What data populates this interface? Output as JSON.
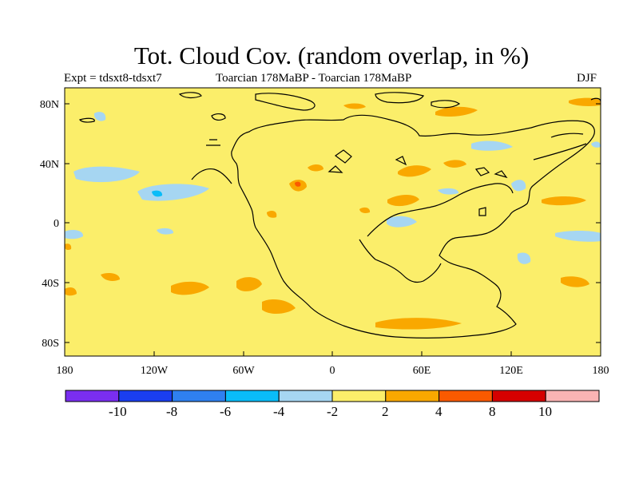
{
  "title": "Tot. Cloud Cov. (random overlap, in %)",
  "subtitle_left": "Expt = tdsxt8-tdsxt7",
  "subtitle_center": "Toarcian 178MaBP - Toarcian 178MaBP",
  "subtitle_right": "DJF",
  "x_ticks": [
    "180",
    "120W",
    "60W",
    "0",
    "60E",
    "120E",
    "180"
  ],
  "y_ticks": [
    "80N",
    "40N",
    "0",
    "40S",
    "80S"
  ],
  "colorbar": {
    "colors": [
      "#7a2ef0",
      "#1a3ef0",
      "#2f80f0",
      "#0abcf8",
      "#a6d6f2",
      "#fbee6a",
      "#f9a800",
      "#fa5a00",
      "#d50000",
      "#fab4b4"
    ],
    "labels": [
      "-10",
      "-8",
      "-6",
      "-4",
      "-2",
      "2",
      "4",
      "8",
      "10"
    ]
  }
}
